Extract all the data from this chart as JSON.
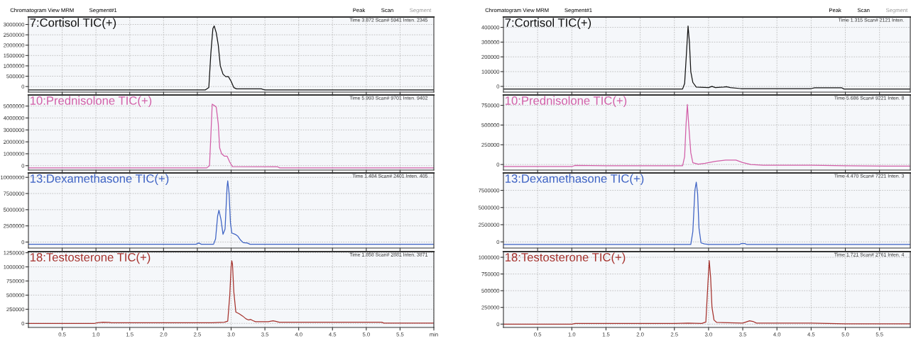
{
  "chart_data": [
    {
      "type": "line",
      "title": "7:Cortisol TIC(+)",
      "annotations": [
        "Time 3.872 Scan# 5941 Inten. 2345",
        "Chromatogram View MRM",
        "Segment#1",
        "Peak",
        "Scan",
        "Segment"
      ],
      "xlim": [
        0,
        6.0
      ],
      "xticks": [
        0.5,
        1,
        1.5,
        2,
        2.5,
        3,
        3.5,
        4,
        4.5,
        5,
        5.5
      ],
      "ylim": [
        -270000,
        3360000
      ],
      "yticks": [
        0,
        500000,
        1000000,
        1500000,
        2000000,
        2500000,
        3000000
      ],
      "grid": true,
      "tick_labels": "y",
      "x": [
        0,
        2.62,
        2.67,
        2.7,
        2.73,
        2.75,
        2.78,
        2.81,
        2.84,
        2.88,
        2.92,
        2.96,
        3.0,
        3.04,
        3.08,
        3.45,
        3.47,
        3.5,
        6.0
      ],
      "series": [
        {
          "color": "#111111",
          "values": [
            -160000,
            -160000,
            -50000,
            1600000,
            2800000,
            2930000,
            2600000,
            2000000,
            1000000,
            600000,
            480000,
            480000,
            250000,
            -50000,
            -110000,
            -110000,
            -140000,
            -160000,
            -160000
          ]
        }
      ]
    },
    {
      "type": "line",
      "title": "10:Prednisolone TIC(+)",
      "annotations": [
        "Time 5.993 Scan# 9701 Inten. 9402"
      ],
      "xlim": [
        0,
        6.0
      ],
      "xticks": [
        0.5,
        1,
        1.5,
        2,
        2.5,
        3,
        3.5,
        4,
        4.5,
        5,
        5.5
      ],
      "ylim": [
        -370000,
        5930000
      ],
      "yticks": [
        0,
        1000000,
        2000000,
        3000000,
        4000000,
        5000000
      ],
      "grid": true,
      "tick_labels": "y",
      "x": [
        0,
        2.64,
        2.68,
        2.7,
        2.72,
        2.75,
        2.78,
        2.81,
        2.83,
        2.86,
        2.9,
        2.94,
        2.98,
        3.02,
        3.69,
        3.72,
        6.0
      ],
      "series": [
        {
          "color": "#d25fa8",
          "values": [
            -185000,
            -185000,
            0,
            2500000,
            5160000,
            5050000,
            4900000,
            3500000,
            1500000,
            1000000,
            800000,
            800000,
            300000,
            -80000,
            -100000,
            -185000,
            -185000
          ]
        }
      ]
    },
    {
      "type": "line",
      "title": "13:Dexamethasone TIC(+)",
      "annotations": [
        "Time 1.484 Scan# 2401 Inten. 405"
      ],
      "xlim": [
        0,
        6.0
      ],
      "xticks": [
        0.5,
        1,
        1.5,
        2,
        2.5,
        3,
        3.5,
        4,
        4.5,
        5,
        5.5
      ],
      "ylim": [
        -930000,
        10680000
      ],
      "yticks": [
        0,
        2500000,
        5000000,
        7500000,
        10000000
      ],
      "grid": true,
      "tick_labels": "y",
      "x": [
        0,
        2.48,
        2.52,
        2.56,
        2.74,
        2.77,
        2.8,
        2.82,
        2.85,
        2.88,
        2.91,
        2.94,
        2.95,
        2.97,
        2.99,
        3.01,
        3.06,
        3.1,
        3.14,
        3.18,
        3.24,
        3.28,
        6.0
      ],
      "series": [
        {
          "color": "#3d62c4",
          "values": [
            -340000,
            -340000,
            -150000,
            -340000,
            -340000,
            500000,
            4000000,
            4920000,
            3500000,
            1190000,
            2000000,
            8500000,
            9450000,
            7500000,
            3000000,
            1400000,
            1200000,
            900000,
            300000,
            -100000,
            -150000,
            -340000,
            -340000
          ]
        }
      ]
    },
    {
      "type": "line",
      "title": "18:Testosterone TIC(+)",
      "annotations": [
        "Time 1.858 Scan# 2881 Inten. 3871"
      ],
      "xlim": [
        0,
        6.0
      ],
      "xticks": [
        0.5,
        {
          "value": 1,
          "label": "1.0"
        },
        1.5,
        {
          "value": 2,
          "label": "2.0"
        },
        2.5,
        {
          "value": 3,
          "label": "3.0"
        },
        3.5,
        {
          "value": 4,
          "label": "4.0"
        },
        4.5,
        {
          "value": 5,
          "label": "5.0"
        },
        5.5,
        {
          "value": 6,
          "label": "min"
        }
      ],
      "ylim": [
        -72000,
        1270000
      ],
      "yticks": [
        0,
        250000,
        500000,
        750000,
        1000000,
        1250000
      ],
      "grid": true,
      "x": [
        0,
        0.98,
        1.02,
        1.1,
        1.2,
        1.22,
        2.72,
        2.9,
        2.95,
        2.98,
        3.0,
        3.01,
        3.02,
        3.04,
        3.07,
        3.12,
        3.17,
        3.22,
        3.26,
        3.29,
        3.32,
        3.36,
        3.55,
        3.62,
        3.66,
        3.71,
        5.23,
        5.26,
        6.0
      ],
      "series": [
        {
          "color": "#a5312c",
          "values": [
            0,
            0,
            12000,
            20000,
            18000,
            10000,
            10000,
            20000,
            40000,
            500000,
            1000000,
            1107000,
            1050000,
            558000,
            200000,
            170000,
            130000,
            80000,
            60000,
            70000,
            50000,
            30000,
            30000,
            45000,
            35000,
            20000,
            20000,
            5000,
            5000
          ]
        }
      ]
    },
    {
      "type": "line",
      "title": "7:Cortisol TIC(+)",
      "annotations": [
        "Time 1.315 Scan# 2121 Inten.",
        "Chromatogram View MRM",
        "Segment#1",
        "Peak",
        "Scan",
        "Segment"
      ],
      "xlim": [
        0,
        5.95
      ],
      "xticks": [
        0.5,
        1.0,
        1.5,
        2.0,
        2.5,
        3.0,
        3.5,
        4.0,
        4.5,
        5.0,
        5.5
      ],
      "ylim": [
        -39000,
        470000
      ],
      "yticks": [
        0,
        100000,
        200000,
        300000,
        400000
      ],
      "grid": true,
      "tick_labels": "y",
      "x": [
        0,
        2.62,
        2.65,
        2.68,
        2.7,
        2.72,
        2.74,
        2.77,
        2.82,
        3.0,
        3.05,
        3.1,
        3.22,
        3.26,
        3.32,
        3.47,
        4.5,
        4.55,
        4.95,
        4.98,
        5.95
      ],
      "series": [
        {
          "color": "#111111",
          "values": [
            -18000,
            -18000,
            20000,
            250000,
            409000,
            300000,
            100000,
            27000,
            -5000,
            -8000,
            0,
            -8000,
            -5000,
            -2000,
            -8000,
            -15000,
            -15000,
            -10000,
            -10000,
            -18000,
            -18000
          ]
        }
      ]
    },
    {
      "type": "line",
      "title": "10:Prednisolone TIC(+)",
      "annotations": [
        "Time 5.686 Scan# 9221 Inten. 8"
      ],
      "xlim": [
        0,
        5.95
      ],
      "xticks": [
        0.5,
        1.0,
        1.5,
        2.0,
        2.5,
        3.0,
        3.5,
        4.0,
        4.5,
        5.0,
        5.5
      ],
      "ylim": [
        -71000,
        881000
      ],
      "yticks": [
        0,
        250000,
        500000,
        750000
      ],
      "grid": true,
      "tick_labels": "y",
      "x": [
        0,
        1.0,
        1.05,
        1.5,
        2.5,
        2.62,
        2.65,
        2.67,
        2.69,
        2.71,
        2.74,
        2.77,
        2.85,
        2.95,
        3.1,
        3.25,
        3.4,
        3.5,
        3.62,
        3.8,
        4.5,
        5.0,
        5.6,
        5.95
      ],
      "series": [
        {
          "color": "#d25fa8",
          "values": [
            -26000,
            -26000,
            -12000,
            -15000,
            -15000,
            -15000,
            100000,
            500000,
            760000,
            500000,
            150000,
            23000,
            5000,
            15000,
            40000,
            56000,
            56000,
            25000,
            0,
            -10000,
            -10000,
            -15000,
            -20000,
            -20000
          ]
        }
      ]
    },
    {
      "type": "line",
      "title": "13:Dexamethasone TIC(+)",
      "annotations": [
        "Time 4.470 Scan# 7221 Inten. 3"
      ],
      "xlim": [
        0,
        5.95
      ],
      "xticks": [
        0.5,
        1.0,
        1.5,
        2.0,
        2.5,
        3.0,
        3.5,
        4.0,
        4.5,
        5.0,
        5.5
      ],
      "ylim": [
        -900000,
        10030000
      ],
      "yticks": [
        0,
        2500000,
        5000000,
        7500000
      ],
      "grid": true,
      "tick_labels": "y",
      "x": [
        0,
        2.74,
        2.77,
        2.8,
        2.82,
        2.84,
        2.86,
        2.89,
        2.94,
        3.0,
        3.45,
        3.48,
        3.53,
        3.56,
        5.95
      ],
      "series": [
        {
          "color": "#3d62c4",
          "values": [
            -380000,
            -380000,
            1500000,
            7500000,
            8690000,
            7000000,
            2000000,
            -150000,
            -300000,
            -380000,
            -380000,
            -250000,
            -250000,
            -380000,
            -380000
          ]
        }
      ]
    },
    {
      "type": "line",
      "title": "18:Testosterone TIC(+)",
      "annotations": [
        "Time 1.721 Scan# 2761 Inten. 4"
      ],
      "xlim": [
        0,
        5.95
      ],
      "xticks": [
        0.5,
        {
          "value": 1,
          "label": "1.0"
        },
        1.5,
        {
          "value": 2,
          "label": "2.0"
        },
        2.5,
        {
          "value": 3,
          "label": "3.0"
        },
        3.5,
        {
          "value": 4,
          "label": "4.0"
        },
        4.5,
        {
          "value": 5,
          "label": "5.0"
        },
        5.5
      ],
      "ylim": [
        -50000,
        1085000
      ],
      "yticks": [
        0,
        250000,
        500000,
        750000,
        1000000
      ],
      "grid": true,
      "x": [
        0,
        1.0,
        1.05,
        2.5,
        2.7,
        2.9,
        2.96,
        2.99,
        3.01,
        3.03,
        3.05,
        3.08,
        3.12,
        3.5,
        3.6,
        3.65,
        3.7,
        4.5,
        5.0,
        5.95
      ],
      "series": [
        {
          "color": "#a5312c",
          "values": [
            0,
            0,
            10000,
            10000,
            15000,
            10000,
            30000,
            600000,
            950000,
            700000,
            250000,
            60000,
            25000,
            15000,
            50000,
            40000,
            15000,
            15000,
            5000,
            5000
          ]
        }
      ]
    }
  ]
}
